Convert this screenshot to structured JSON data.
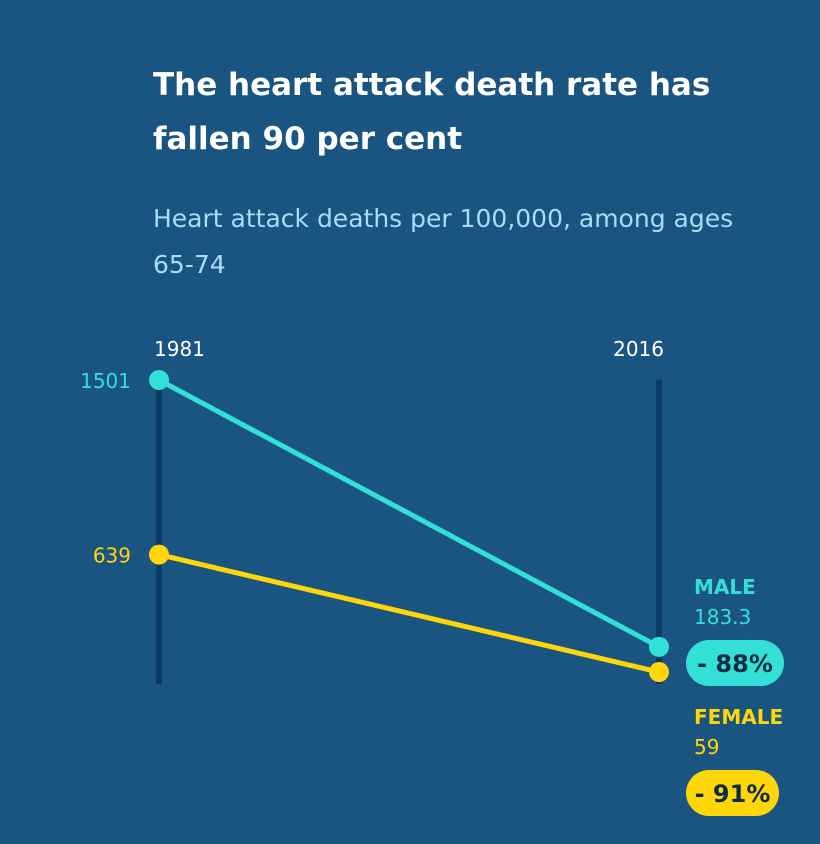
{
  "title": "The heart attack death rate has fallen 90 per cent",
  "subtitle": "Heart attack deaths per 100,000, among ages 65-74",
  "colors": {
    "background": "#1a5582",
    "axis": "#0b3a64",
    "male": "#33e0d6",
    "female": "#ffd60a",
    "pill_text": "#0d2b45"
  },
  "chart_data": {
    "type": "line",
    "x": [
      "1981",
      "2016"
    ],
    "series": [
      {
        "name": "MALE",
        "values": [
          1501,
          183.3
        ],
        "start_label": "1501",
        "end_label": "183.3",
        "change_label": "- 88%",
        "color": "#33e0d6"
      },
      {
        "name": "FEMALE",
        "values": [
          639,
          59
        ],
        "start_label": "639",
        "end_label": "59",
        "change_label": "- 91%",
        "color": "#ffd60a"
      }
    ],
    "title": "The heart attack death rate has fallen 90 per cent",
    "subtitle": "Heart attack deaths per 100,000, among ages 65-74",
    "ylim": [
      0,
      1501
    ],
    "grid": false,
    "legend": "none"
  }
}
